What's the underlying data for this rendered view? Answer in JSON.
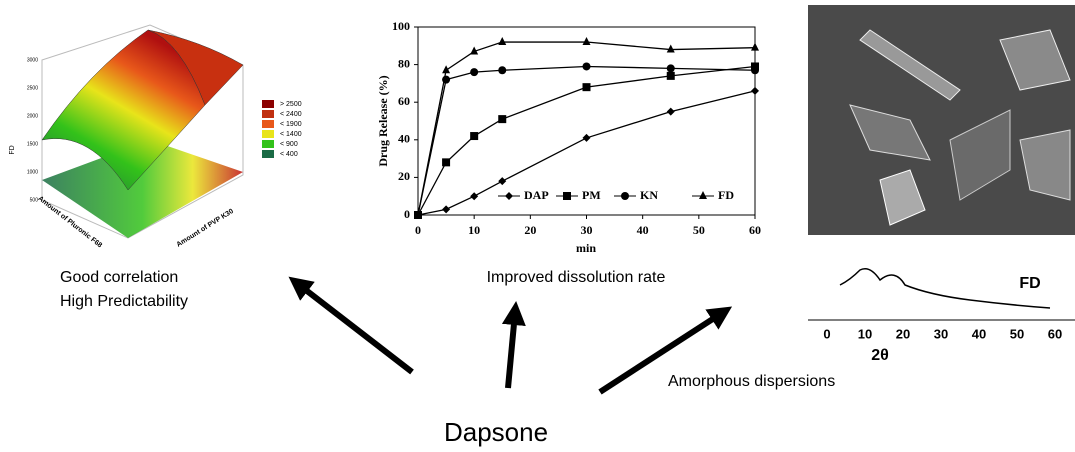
{
  "chart_data": {
    "type": "line",
    "ylabel": "Drug Release (%)",
    "xlabel": "min",
    "x": [
      0,
      5,
      10,
      15,
      30,
      45,
      60
    ],
    "series": [
      {
        "name": "DAP",
        "color": "#000000",
        "marker": "diamond",
        "values": [
          0,
          3,
          10,
          18,
          41,
          55,
          66
        ]
      },
      {
        "name": "PM",
        "color": "#000000",
        "marker": "square",
        "values": [
          0,
          28,
          42,
          51,
          68,
          74,
          79
        ]
      },
      {
        "name": "KN",
        "color": "#000000",
        "marker": "circle",
        "values": [
          0,
          72,
          76,
          77,
          79,
          78,
          77
        ]
      },
      {
        "name": "FD",
        "color": "#000000",
        "marker": "triangle",
        "values": [
          0,
          77,
          87,
          92,
          92,
          88,
          89
        ]
      }
    ],
    "xlim": [
      0,
      60
    ],
    "xticks": [
      0,
      10,
      20,
      30,
      40,
      50,
      60
    ],
    "ylim": [
      0,
      100
    ],
    "yticks": [
      0,
      20,
      40,
      60,
      80,
      100
    ],
    "legend": "lower right"
  },
  "surface_plot": {
    "zlabel": "FD",
    "xlabel": "Amount of Pluronic F68",
    "ylabel": "Amount of PVP K30",
    "zticks": [
      "500",
      "1000",
      "1500",
      "2000",
      "2500",
      "3000"
    ],
    "legend": [
      "> 2500",
      "< 2400",
      "< 1900",
      "< 1400",
      "< 900",
      "< 400"
    ]
  },
  "xrd_pattern": {
    "label": "FD",
    "xlabel": "2θ",
    "xticks": [
      "0",
      "10",
      "20",
      "30",
      "40",
      "50",
      "60"
    ]
  },
  "captions": {
    "left": [
      "Good correlation",
      "High Predictability"
    ],
    "middle": "Improved dissolution rate",
    "right": "Amorphous dispersions"
  },
  "center_label": "Dapsone"
}
